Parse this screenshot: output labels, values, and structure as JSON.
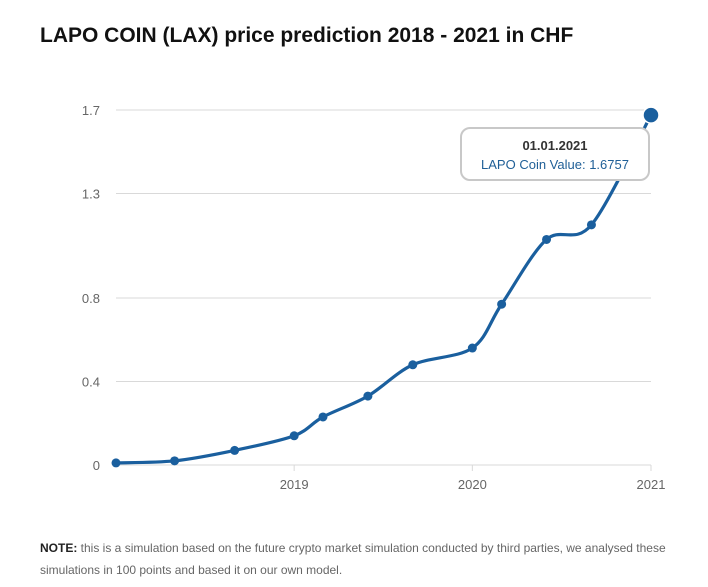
{
  "title": "LAPO COIN (LAX) price prediction 2018 - 2021 in CHF",
  "colors": {
    "line": "#1a5f9e",
    "grid": "#d9d9d9",
    "tick": "#666666"
  },
  "tooltip": {
    "date": "01.01.2021",
    "series_label": "LAPO Coin Value: ",
    "value": "1.6757"
  },
  "note": {
    "label": "NOTE:",
    "text": " this is a simulation based on the future crypto market simulation conducted by third parties, we analysed these simulations in 100 points and based it on our own model."
  },
  "chart_data": {
    "type": "line",
    "series": [
      {
        "name": "LAPO Coin Value",
        "x": [
          "2018-01-01",
          "2018-05-01",
          "2018-09-01",
          "2019-01-01",
          "2019-03-01",
          "2019-06-01",
          "2019-09-01",
          "2020-01-01",
          "2020-03-01",
          "2020-06-01",
          "2020-09-01",
          "2021-01-01"
        ],
        "y": [
          0.01,
          0.02,
          0.07,
          0.14,
          0.23,
          0.33,
          0.48,
          0.56,
          0.77,
          1.08,
          1.15,
          1.6757
        ]
      }
    ],
    "x_ticks": [
      "2019",
      "2020",
      "2021"
    ],
    "y_ticks": [
      "0",
      "0.4",
      "0.8",
      "1.3",
      "1.7"
    ],
    "xlim": [
      "2018-01-01",
      "2021-01-01"
    ],
    "ylim": [
      0,
      1.7
    ],
    "grid": true,
    "legend": "none"
  }
}
